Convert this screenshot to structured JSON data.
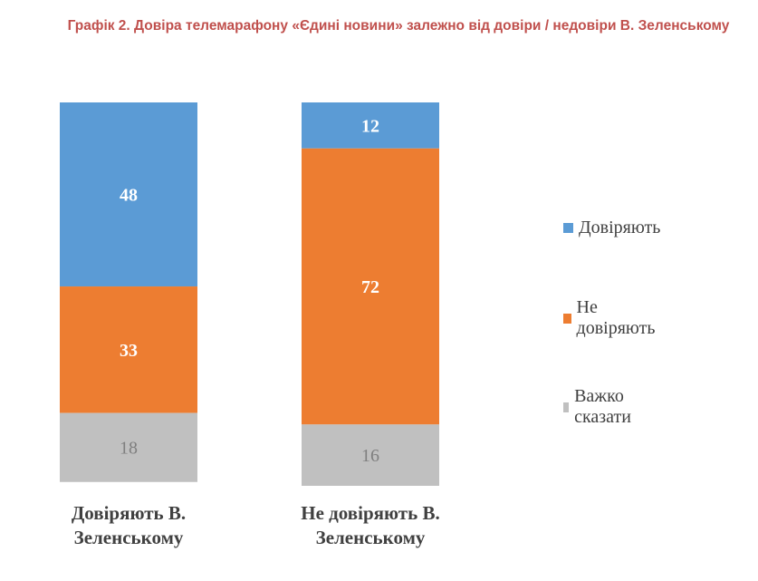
{
  "title": "Графік 2. Довіра телемарафону «Єдині новини» залежно від довіри / недовіри В. Зеленському",
  "chart_data": {
    "type": "bar",
    "stacked": true,
    "percent": true,
    "categories": [
      "Довіряють В. Зеленському",
      "Не довіряють В. Зеленському"
    ],
    "series": [
      {
        "name": "Довіряють",
        "color": "#5b9bd5",
        "values": [
          48,
          12
        ]
      },
      {
        "name": "Не довіряють",
        "color": "#ed7d31",
        "values": [
          33,
          72
        ]
      },
      {
        "name": "Важко сказати",
        "color": "#c0c0c0",
        "values": [
          18,
          16
        ]
      }
    ],
    "ylim": [
      0,
      100
    ],
    "legend_position": "right"
  }
}
